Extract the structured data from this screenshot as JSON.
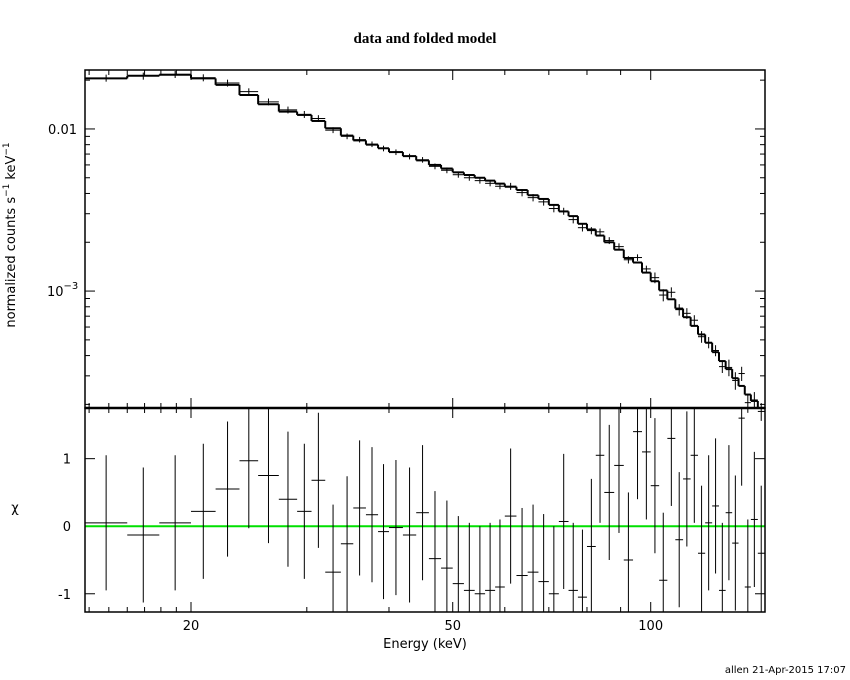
{
  "chart_data": {
    "type": "spectrum",
    "title": "data and folded model",
    "xlabel": "Energy (keV)",
    "footer": "allen 21-Apr-2015 17:07",
    "log_x": true,
    "xlim": [
      13.8,
      149.2
    ],
    "xticks": [
      20,
      50,
      100
    ],
    "xminor": [
      14,
      15,
      16,
      17,
      18,
      19,
      30,
      40,
      60,
      70,
      80,
      90
    ],
    "bins": [
      13.8,
      16,
      17.9,
      20,
      21.8,
      23.7,
      25.3,
      27.2,
      29,
      30.5,
      32,
      33.8,
      35.3,
      36.9,
      38.5,
      40,
      42,
      44,
      46,
      48,
      50,
      52,
      54,
      56,
      58,
      60,
      62.5,
      65,
      67.5,
      70,
      72.5,
      75,
      77.5,
      80,
      82.5,
      85,
      88,
      91,
      94,
      97,
      100,
      103,
      106,
      109,
      112,
      115,
      118,
      121,
      124,
      127,
      130,
      133,
      136,
      139,
      142,
      145.5,
      149
    ],
    "top": {
      "ylabel": {
        "text": "normalized counts s",
        "sup1": "−1",
        "unit": "keV",
        "sup2": "−1"
      },
      "log_y": true,
      "ylim": [
        0.00019,
        0.0231
      ],
      "yticks": [
        0.01,
        {
          "value": 0.001,
          "label": "10",
          "exponent": "−3"
        }
      ],
      "yminor": [
        0.0002,
        0.0003,
        0.0004,
        0.0005,
        0.0006,
        0.0007,
        0.0008,
        0.0009,
        0.002,
        0.003,
        0.004,
        0.005,
        0.006,
        0.007,
        0.008,
        0.009,
        0.02
      ],
      "color": "#000000",
      "values": [
        0.0206,
        0.0212,
        0.0217,
        0.0207,
        0.0192,
        0.017,
        0.0147,
        0.0131,
        0.0123,
        0.0116,
        0.00983,
        0.00901,
        0.00859,
        0.00805,
        0.00758,
        0.00719,
        0.00676,
        0.00645,
        0.00588,
        0.00556,
        0.00522,
        0.005,
        0.0048,
        0.00462,
        0.00443,
        0.00443,
        0.00405,
        0.00377,
        0.00355,
        0.00323,
        0.00311,
        0.00276,
        0.00246,
        0.00236,
        0.00232,
        0.00205,
        0.00188,
        0.00156,
        0.00161,
        0.00137,
        0.00121,
        0.000945,
        0.000983,
        0.000768,
        0.000729,
        0.000661,
        0.000523,
        0.000482,
        0.00043,
        0.000342,
        0.000338,
        0.000281,
        0.00031,
        0.000205,
        0.000213,
        0.000181
      ],
      "errors": [
        0.00103,
        0.00107,
        0.00108,
        0.00103,
        0.00094,
        0.00081,
        0.00071,
        0.00064,
        0.00061,
        0.00056,
        0.000404,
        0.000364,
        0.00034,
        0.00032,
        0.000304,
        0.000288,
        0.000272,
        0.000256,
        0.00024,
        0.000228,
        0.000216,
        0.000208,
        0.0002,
        0.000192,
        0.000184,
        0.00022,
        0.00021,
        0.000195,
        0.000185,
        0.00017,
        0.000155,
        0.000145,
        0.00013,
        0.00012,
        0.00011,
        0.0001,
        9e-05,
        8e-05,
        7.5e-05,
        6.5e-05,
        9.2e-05,
        8.08e-05,
        7.12e-05,
        6.24e-05,
        5.52e-05,
        4.88e-05,
        4.32e-05,
        3.84e-05,
        3.36e-05,
        2.96e-05,
        3.96e-05,
        3.48e-05,
        3.12e-05,
        2.76e-05,
        2.52e-05,
        2.28e-05
      ],
      "model": [
        0.0205,
        0.0213,
        0.0216,
        0.0205,
        0.0187,
        0.0162,
        0.0142,
        0.0128,
        0.0122,
        0.0112,
        0.0101,
        0.0091,
        0.0085,
        0.008,
        0.0076,
        0.0072,
        0.0068,
        0.0064,
        0.006,
        0.0057,
        0.0054,
        0.0052,
        0.005,
        0.0048,
        0.0046,
        0.0044,
        0.0042,
        0.0039,
        0.0037,
        0.0034,
        0.0031,
        0.0029,
        0.0026,
        0.0024,
        0.0022,
        0.002,
        0.0018,
        0.0016,
        0.0015,
        0.0013,
        0.00115,
        0.00101,
        0.00089,
        0.00078,
        0.00069,
        0.00061,
        0.00054,
        0.00048,
        0.00042,
        0.00037,
        0.00033,
        0.00029,
        0.00026,
        0.00023,
        0.00021,
        0.00019
      ]
    },
    "bottom": {
      "ylabel": "χ",
      "ylim": [
        -1.27,
        1.75
      ],
      "yticks": [
        -1,
        0,
        1
      ],
      "zero_line": 0,
      "zero_color": "#00e000",
      "residual_error": 1,
      "residuals": [
        0.05,
        -0.13,
        0.05,
        0.22,
        0.55,
        0.97,
        0.75,
        0.4,
        0.22,
        0.68,
        -0.68,
        -0.26,
        0.27,
        0.17,
        -0.08,
        -0.02,
        -0.13,
        0.2,
        -0.48,
        -0.62,
        -0.85,
        -0.95,
        -1.0,
        -0.95,
        -0.9,
        0.15,
        -0.73,
        -0.68,
        -0.82,
        -1.0,
        0.07,
        -0.95,
        -1.05,
        -0.3,
        1.05,
        0.5,
        0.9,
        -0.5,
        1.4,
        1.1,
        0.6,
        -0.8,
        1.3,
        -0.2,
        0.7,
        1.05,
        -0.4,
        0.05,
        0.3,
        -0.95,
        0.2,
        -0.25,
        1.6,
        -0.9,
        0.1,
        -0.4
      ]
    }
  }
}
